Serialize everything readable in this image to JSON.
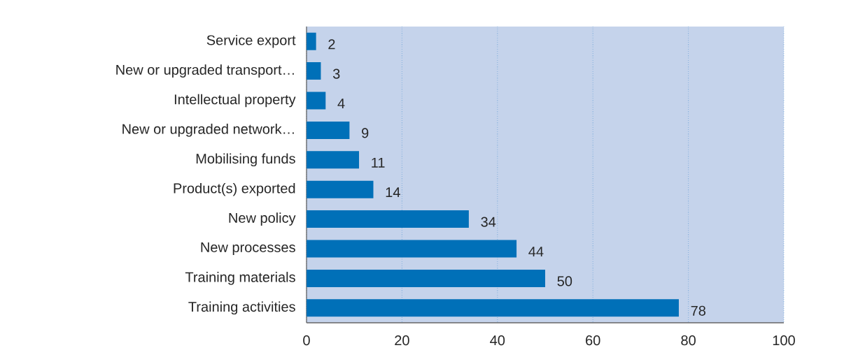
{
  "chart_data": {
    "type": "bar",
    "orientation": "horizontal",
    "categories": [
      "Service export",
      "New or upgraded transport…",
      "Intellectual property",
      "New or upgraded network…",
      "Mobilising funds",
      "Product(s) exported",
      "New policy",
      "New processes",
      "Training materials",
      "Training activities"
    ],
    "values": [
      2,
      3,
      4,
      9,
      11,
      14,
      34,
      44,
      50,
      78
    ],
    "color": "#0070b8",
    "xlim": [
      0,
      100
    ],
    "xticks": [
      0,
      20,
      40,
      60,
      80,
      100
    ],
    "grid": "x",
    "data_labels": true
  }
}
